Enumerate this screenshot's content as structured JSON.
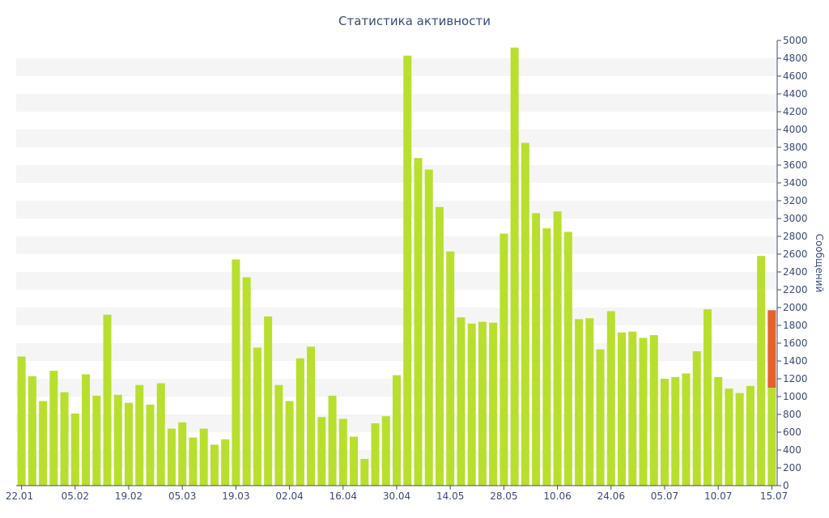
{
  "chart_data": {
    "type": "bar",
    "title": "Статистика активности",
    "ylabel": "Сообщений",
    "xlabel": "",
    "ylim": [
      0,
      5000
    ],
    "y_ticks": [
      0,
      200,
      400,
      600,
      800,
      1000,
      1200,
      1400,
      1600,
      1800,
      2000,
      2200,
      2400,
      2600,
      2800,
      3000,
      3200,
      3400,
      3600,
      3800,
      4000,
      4200,
      4400,
      4600,
      4800,
      5000
    ],
    "x_tick_labels": [
      {
        "index": 0,
        "label": "22.01"
      },
      {
        "index": 5,
        "label": "05.02"
      },
      {
        "index": 10,
        "label": "19.02"
      },
      {
        "index": 15,
        "label": "05.03"
      },
      {
        "index": 20,
        "label": "19.03"
      },
      {
        "index": 25,
        "label": "02.04"
      },
      {
        "index": 30,
        "label": "16.04"
      },
      {
        "index": 35,
        "label": "30.04"
      },
      {
        "index": 40,
        "label": "14.05"
      },
      {
        "index": 45,
        "label": "28.05"
      },
      {
        "index": 50,
        "label": "10.06"
      },
      {
        "index": 55,
        "label": "24.06"
      },
      {
        "index": 60,
        "label": "05.07"
      },
      {
        "index": 65,
        "label": "10.07"
      },
      {
        "index": 70,
        "label": "15.07"
      }
    ],
    "grid": true,
    "y_axis_position": "right",
    "colors": {
      "bar": "#b8df2d",
      "highlight": "#e5622a",
      "title": "#3c4a7a",
      "band": "#f5f5f5"
    },
    "values": [
      1450,
      1230,
      950,
      1290,
      1050,
      810,
      1250,
      1010,
      1920,
      1020,
      930,
      1130,
      910,
      1150,
      640,
      710,
      540,
      640,
      460,
      520,
      2540,
      2340,
      1550,
      1900,
      1130,
      950,
      1430,
      1560,
      770,
      1010,
      750,
      550,
      300,
      700,
      780,
      1240,
      4830,
      3680,
      3550,
      3130,
      2630,
      1890,
      1820,
      1840,
      1830,
      2830,
      4920,
      3850,
      3060,
      2890,
      3080,
      2850,
      1870,
      1880,
      1530,
      1960,
      1720,
      1730,
      1660,
      1690,
      1200,
      1220,
      1260,
      1510,
      1980,
      1220,
      1090,
      1040,
      1120,
      2580,
      1970
    ],
    "last_bar_split": {
      "green": 1100,
      "total": 1970
    }
  }
}
